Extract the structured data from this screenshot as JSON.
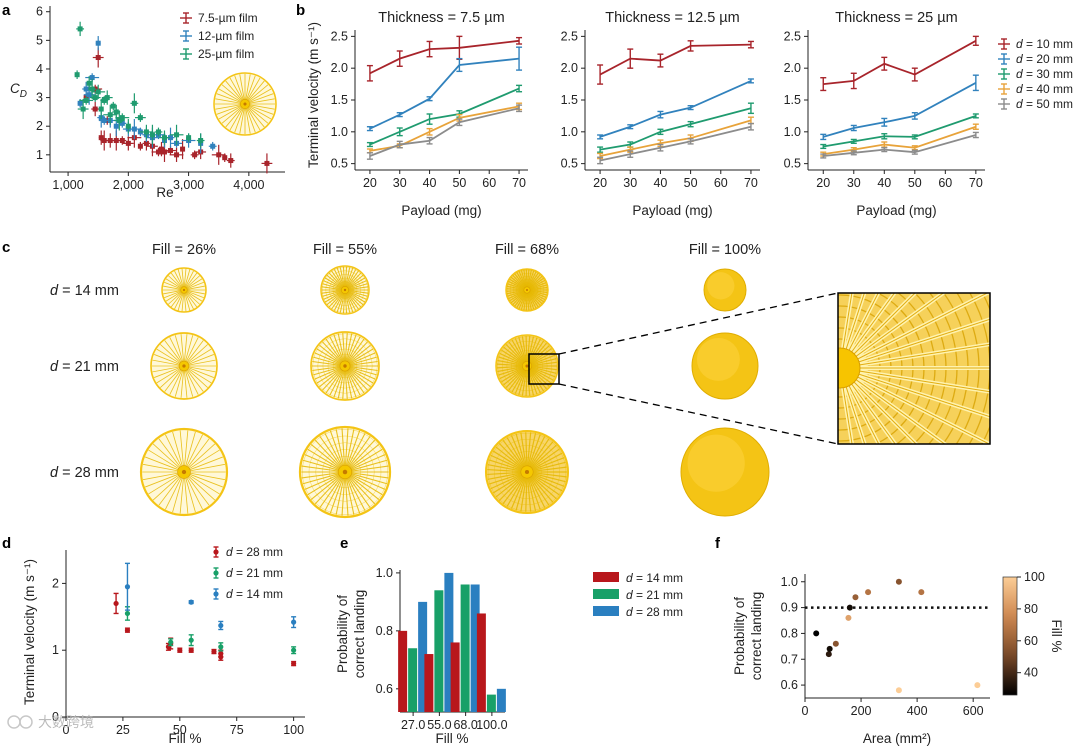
{
  "watermark": "大数跨境",
  "panel_labels": {
    "a": "a",
    "b": "b",
    "c": "c",
    "d": "d",
    "e": "e",
    "f": "f"
  },
  "colors": {
    "film_7_5": "#a8242b",
    "film_12": "#3182bd",
    "film_25": "#1f9b6f",
    "d10": "#a8242b",
    "d20": "#3182bd",
    "d30": "#1f9b6f",
    "d40": "#e8a33a",
    "d50": "#8c8c8c",
    "d14": "#b8171c",
    "d21": "#18a068",
    "d28": "#2a7fc0",
    "disk": "#f4c415",
    "disk_light": "#fbe58a"
  },
  "chart_data": [
    {
      "id": "a",
      "type": "scatter",
      "xlabel": "Re",
      "ylabel": "C",
      "ylabel_sub": "D",
      "xlim": [
        700,
        4600
      ],
      "ylim": [
        0.4,
        6.2
      ],
      "xticks": [
        1000,
        2000,
        3000,
        4000
      ],
      "xtick_labels": [
        "1,000",
        "2,000",
        "3,000",
        "4,000"
      ],
      "yticks": [
        1,
        2,
        3,
        4,
        5,
        6
      ],
      "series": [
        {
          "name": "7.5-µm film",
          "color_key": "film_7_5",
          "points": [
            [
              1300,
              3.0
            ],
            [
              1450,
              2.6
            ],
            [
              1500,
              4.4
            ],
            [
              1450,
              3.3
            ],
            [
              1550,
              1.6
            ],
            [
              1600,
              1.5
            ],
            [
              1650,
              2.2
            ],
            [
              1700,
              1.5
            ],
            [
              1800,
              1.5
            ],
            [
              1900,
              1.5
            ],
            [
              2000,
              1.4
            ],
            [
              2100,
              1.6
            ],
            [
              2200,
              1.3
            ],
            [
              2300,
              1.4
            ],
            [
              2400,
              1.3
            ],
            [
              2500,
              1.1
            ],
            [
              2550,
              1.2
            ],
            [
              2600,
              1.1
            ],
            [
              2700,
              1.15
            ],
            [
              2800,
              1.0
            ],
            [
              2900,
              1.2
            ],
            [
              3100,
              1.0
            ],
            [
              3200,
              1.1
            ],
            [
              3500,
              1.0
            ],
            [
              3600,
              0.9
            ],
            [
              3700,
              0.8
            ],
            [
              4300,
              0.7
            ]
          ]
        },
        {
          "name": "12-µm film",
          "color_key": "film_12",
          "points": [
            [
              1200,
              2.8
            ],
            [
              1300,
              3.3
            ],
            [
              1350,
              3.1
            ],
            [
              1400,
              3.7
            ],
            [
              1500,
              4.9
            ],
            [
              1550,
              2.3
            ],
            [
              1600,
              2.2
            ],
            [
              1700,
              2.2
            ],
            [
              1800,
              2.0
            ],
            [
              1900,
              2.1
            ],
            [
              2000,
              1.9
            ],
            [
              2100,
              1.9
            ],
            [
              2200,
              1.8
            ],
            [
              2300,
              1.7
            ],
            [
              2400,
              1.6
            ],
            [
              2500,
              1.7
            ],
            [
              2600,
              1.5
            ],
            [
              2700,
              1.6
            ],
            [
              2800,
              1.4
            ],
            [
              3000,
              1.5
            ],
            [
              3200,
              1.4
            ],
            [
              3400,
              1.3
            ]
          ]
        },
        {
          "name": "25-µm film",
          "color_key": "film_25",
          "points": [
            [
              1150,
              3.8
            ],
            [
              1200,
              5.4
            ],
            [
              1250,
              2.6
            ],
            [
              1300,
              2.9
            ],
            [
              1350,
              3.5
            ],
            [
              1400,
              3.3
            ],
            [
              1450,
              3.0
            ],
            [
              1500,
              3.2
            ],
            [
              1550,
              2.6
            ],
            [
              1600,
              2.9
            ],
            [
              1650,
              3.0
            ],
            [
              1700,
              2.4
            ],
            [
              1750,
              2.7
            ],
            [
              1800,
              2.5
            ],
            [
              1850,
              2.2
            ],
            [
              1900,
              2.3
            ],
            [
              2000,
              2.0
            ],
            [
              2100,
              2.8
            ],
            [
              2200,
              2.3
            ],
            [
              2300,
              1.8
            ],
            [
              2400,
              1.7
            ],
            [
              2500,
              1.8
            ],
            [
              2600,
              1.6
            ],
            [
              2800,
              1.7
            ],
            [
              3000,
              1.6
            ],
            [
              3200,
              1.5
            ]
          ]
        }
      ]
    },
    {
      "id": "b",
      "type": "line",
      "title_prefix": "Thickness = ",
      "subpanels": [
        {
          "title": "7.5 µm"
        },
        {
          "title": "12.5 µm"
        },
        {
          "title": "25 µm"
        }
      ],
      "xlabel": "Payload (mg)",
      "ylabel": "Terminal velocity (m s⁻¹)",
      "x": [
        20,
        30,
        40,
        50,
        70
      ],
      "xlim": [
        15,
        73
      ],
      "ylim": [
        0.4,
        2.6
      ],
      "xticks": [
        20,
        30,
        40,
        50,
        60,
        70
      ],
      "yticks": [
        0.5,
        1.0,
        1.5,
        2.0,
        2.5
      ],
      "ytick_labels": [
        "0.5",
        "1.0",
        "1.5",
        "2.0",
        "2.5"
      ],
      "legend_prefix": "d",
      "series_names": [
        "= 10 mm",
        "= 20 mm",
        "= 30 mm",
        "= 40 mm",
        "= 50 mm"
      ],
      "series_keys": [
        "d10",
        "d20",
        "d30",
        "d40",
        "d50"
      ],
      "values": [
        [
          [
            1.92,
            2.15,
            2.3,
            2.32,
            2.43
          ],
          [
            1.05,
            1.27,
            1.52,
            2.05,
            2.15
          ],
          [
            0.8,
            1.0,
            1.2,
            1.28,
            1.68
          ],
          [
            0.7,
            0.78,
            1.0,
            1.22,
            1.4
          ],
          [
            0.62,
            0.8,
            0.86,
            1.15,
            1.37
          ]
        ],
        [
          [
            1.9,
            2.15,
            2.12,
            2.35,
            2.37
          ],
          [
            0.92,
            1.08,
            1.27,
            1.38,
            1.8
          ],
          [
            0.72,
            0.8,
            1.0,
            1.12,
            1.37
          ],
          [
            0.62,
            0.72,
            0.82,
            0.9,
            1.18
          ],
          [
            0.55,
            0.65,
            0.75,
            0.85,
            1.08
          ]
        ],
        [
          [
            1.75,
            1.8,
            2.07,
            1.9,
            2.43
          ],
          [
            0.92,
            1.06,
            1.15,
            1.25,
            1.77
          ],
          [
            0.77,
            0.85,
            0.93,
            0.92,
            1.25
          ],
          [
            0.65,
            0.72,
            0.8,
            0.75,
            1.08
          ],
          [
            0.62,
            0.67,
            0.72,
            0.68,
            0.95
          ]
        ]
      ],
      "errors": [
        [
          [
            0.12,
            0.12,
            0.12,
            0.18,
            0.05
          ],
          [
            0.03,
            0.03,
            0.03,
            0.1,
            0.18
          ],
          [
            0.03,
            0.06,
            0.08,
            0.05,
            0.05
          ],
          [
            0.03,
            0.03,
            0.05,
            0.05,
            0.05
          ],
          [
            0.05,
            0.05,
            0.05,
            0.05,
            0.05
          ]
        ],
        [
          [
            0.15,
            0.15,
            0.1,
            0.08,
            0.05
          ],
          [
            0.03,
            0.03,
            0.05,
            0.03,
            0.03
          ],
          [
            0.04,
            0.04,
            0.04,
            0.04,
            0.08
          ],
          [
            0.04,
            0.04,
            0.05,
            0.05,
            0.05
          ],
          [
            0.05,
            0.05,
            0.05,
            0.04,
            0.05
          ]
        ],
        [
          [
            0.1,
            0.12,
            0.1,
            0.1,
            0.07
          ],
          [
            0.04,
            0.04,
            0.06,
            0.05,
            0.12
          ],
          [
            0.03,
            0.03,
            0.04,
            0.03,
            0.03
          ],
          [
            0.03,
            0.03,
            0.04,
            0.03,
            0.04
          ],
          [
            0.03,
            0.03,
            0.03,
            0.03,
            0.04
          ]
        ]
      ]
    },
    {
      "id": "c",
      "type": "table",
      "fill_prefix": "Fill = ",
      "columns": [
        "26%",
        "55%",
        "68%",
        "100%"
      ],
      "row_prefix": "d",
      "rows": [
        "= 14 mm",
        "= 21 mm",
        "= 28 mm"
      ]
    },
    {
      "id": "d",
      "type": "scatter",
      "xlabel": "Fill %",
      "ylabel": "Terminal velocity (m s⁻¹)",
      "xlim": [
        0,
        105
      ],
      "ylim": [
        0,
        2.5
      ],
      "xticks": [
        0,
        25,
        50,
        75,
        100
      ],
      "yticks": [
        0,
        1,
        2
      ],
      "legend_prefix": "d",
      "series": [
        {
          "name": "= 28 mm",
          "color_key": "d14",
          "points": [
            [
              22,
              1.7,
              0.15
            ],
            [
              27,
              1.3,
              0.03
            ],
            [
              45,
              1.05,
              0.05
            ],
            [
              46,
              1.1,
              0.08
            ],
            [
              50,
              1.0,
              0.03
            ],
            [
              55,
              1.0,
              0.03
            ],
            [
              65,
              0.98,
              0.03
            ],
            [
              68,
              0.9,
              0.05
            ],
            [
              68,
              0.95,
              0.05
            ],
            [
              100,
              0.8,
              0.03
            ]
          ]
        },
        {
          "name": "= 21 mm",
          "color_key": "d21",
          "points": [
            [
              27,
              1.55,
              0.1
            ],
            [
              46,
              1.12,
              0.05
            ],
            [
              55,
              1.15,
              0.08
            ],
            [
              68,
              1.05,
              0.06
            ],
            [
              100,
              1.0,
              0.05
            ]
          ]
        },
        {
          "name": "= 14 mm",
          "color_key": "d28",
          "points": [
            [
              27,
              1.95,
              0.35
            ],
            [
              55,
              1.72,
              0.02
            ],
            [
              68,
              1.37,
              0.06
            ],
            [
              100,
              1.42,
              0.08
            ]
          ]
        }
      ]
    },
    {
      "id": "e",
      "type": "bar",
      "xlabel": "Fill %",
      "ylabel": "Probability of correct landing",
      "categories": [
        "27.0",
        "55.0",
        "68.0",
        "100.0"
      ],
      "ylim": [
        0.52,
        1.01
      ],
      "yticks": [
        0.6,
        0.8,
        1.0
      ],
      "ytick_labels": [
        "0.6",
        "0.8",
        "1.0"
      ],
      "legend_prefix": "d",
      "series": [
        {
          "name": "= 14 mm",
          "color_key": "d14",
          "values": [
            0.8,
            0.72,
            0.76,
            0.86
          ]
        },
        {
          "name": "= 21 mm",
          "color_key": "d21",
          "values": [
            0.74,
            0.94,
            0.96,
            0.58
          ]
        },
        {
          "name": "= 28 mm",
          "color_key": "d28",
          "values": [
            0.9,
            1.0,
            0.96,
            0.6
          ]
        }
      ]
    },
    {
      "id": "f",
      "type": "scatter",
      "xlabel": "Area (mm²)",
      "ylabel": "Probability of correct landing",
      "xlim": [
        0,
        660
      ],
      "ylim": [
        0.55,
        1.03
      ],
      "xticks": [
        0,
        200,
        400,
        600
      ],
      "yticks": [
        0.6,
        0.7,
        0.8,
        0.9,
        1.0
      ],
      "ytick_labels": [
        "0.6",
        "0.7",
        "0.8",
        "0.9",
        "1.0"
      ],
      "threshold": 0.9,
      "colorbar_label": "Fill %",
      "colorbar_range": [
        26,
        100
      ],
      "colorbar_ticks": [
        40,
        60,
        80,
        100
      ],
      "points": [
        [
          40,
          0.8,
          26
        ],
        [
          85,
          0.72,
          35
        ],
        [
          88,
          0.74,
          30
        ],
        [
          110,
          0.76,
          55
        ],
        [
          155,
          0.86,
          85
        ],
        [
          160,
          0.9,
          30
        ],
        [
          180,
          0.94,
          60
        ],
        [
          225,
          0.96,
          68
        ],
        [
          335,
          1.0,
          55
        ],
        [
          335,
          0.58,
          100
        ],
        [
          415,
          0.96,
          68
        ],
        [
          615,
          0.6,
          100
        ]
      ]
    }
  ]
}
